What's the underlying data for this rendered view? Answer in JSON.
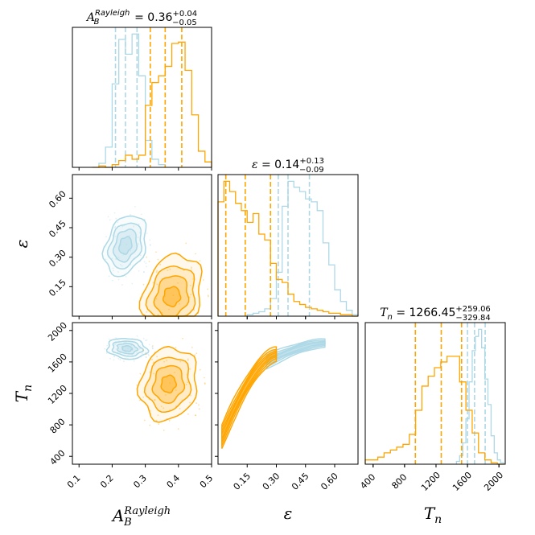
{
  "chart_data": {
    "type": "corner",
    "colors": {
      "orange": "#ffa500",
      "blue": "#add8e6"
    },
    "diag": [
      {
        "param": "A_B^Rayleigh",
        "title": {
          "prefix": "A",
          "sub": "B",
          "sup": "Rayleigh",
          "eq": " = 0.36",
          "plus": "+0.04",
          "minus": "−0.05"
        },
        "xlim": [
          0.08,
          0.5
        ],
        "orange": {
          "bins": [
            0.14,
            0.16,
            0.18,
            0.2,
            0.22,
            0.24,
            0.26,
            0.28,
            0.3,
            0.32,
            0.34,
            0.36,
            0.38,
            0.4,
            0.42,
            0.44,
            0.46,
            0.48
          ],
          "counts": [
            0,
            1,
            0,
            2,
            5,
            9,
            6,
            9,
            46,
            63,
            68,
            75,
            92,
            93,
            72,
            39,
            12,
            4
          ],
          "quantiles": [
            0.315,
            0.36,
            0.41
          ]
        },
        "blue": {
          "bins": [
            0.16,
            0.18,
            0.2,
            0.22,
            0.24,
            0.26,
            0.28,
            0.3,
            0.32,
            0.34
          ],
          "counts": [
            3,
            15,
            62,
            95,
            84,
            99,
            68,
            20,
            6,
            2
          ],
          "quantiles": [
            0.21,
            0.24,
            0.275
          ]
        }
      },
      {
        "param": "epsilon",
        "title": {
          "prefix": "ε",
          "eq": " = 0.14",
          "plus": "+0.13",
          "minus": "−0.09"
        },
        "xlim": [
          0.0,
          0.72
        ],
        "orange": {
          "bins": [
            0.0,
            0.03,
            0.06,
            0.09,
            0.12,
            0.15,
            0.18,
            0.21,
            0.24,
            0.27,
            0.3,
            0.33,
            0.36,
            0.39,
            0.42,
            0.45,
            0.48,
            0.51,
            0.54,
            0.57,
            0.6,
            0.63,
            0.66,
            0.69
          ],
          "counts": [
            78,
            92,
            85,
            77,
            72,
            64,
            70,
            56,
            52,
            36,
            25,
            23,
            15,
            10,
            8,
            6,
            5,
            4,
            3,
            2,
            2,
            1,
            1,
            0
          ],
          "quantiles": [
            0.04,
            0.14,
            0.27
          ]
        },
        "blue": {
          "bins": [
            0.15,
            0.18,
            0.21,
            0.24,
            0.27,
            0.3,
            0.33,
            0.36,
            0.39,
            0.42,
            0.45,
            0.48,
            0.51,
            0.54,
            0.57,
            0.6,
            0.63,
            0.66,
            0.69
          ],
          "counts": [
            1,
            2,
            3,
            5,
            12,
            30,
            75,
            92,
            88,
            85,
            80,
            78,
            72,
            50,
            35,
            18,
            10,
            4,
            1
          ],
          "quantiles": [
            0.31,
            0.36,
            0.47
          ]
        }
      },
      {
        "param": "T_n",
        "title": {
          "prefix": "T",
          "sub": "n",
          "eq": " = 1266.45",
          "plus": "+259.06",
          "minus": "−329.84"
        },
        "xlim": [
          300,
          2080
        ],
        "orange": {
          "bins": [
            300,
            380,
            460,
            540,
            620,
            700,
            780,
            860,
            940,
            1020,
            1100,
            1180,
            1260,
            1340,
            1420,
            1500,
            1580,
            1660,
            1740,
            1820,
            1900,
            1980
          ],
          "counts": [
            3,
            3,
            5,
            8,
            10,
            12,
            14,
            21,
            38,
            55,
            62,
            68,
            72,
            76,
            76,
            58,
            38,
            22,
            8,
            3,
            1,
            0
          ],
          "quantiles": [
            937,
            1266,
            1525
          ]
        },
        "blue": {
          "bins": [
            1460,
            1500,
            1540,
            1580,
            1620,
            1660,
            1700,
            1740,
            1780,
            1820,
            1860,
            1900,
            1940,
            1980,
            2020
          ],
          "counts": [
            2,
            6,
            15,
            32,
            58,
            80,
            90,
            95,
            82,
            60,
            42,
            20,
            8,
            3,
            1
          ],
          "quantiles": [
            1600,
            1690,
            1825
          ]
        }
      }
    ],
    "axes": {
      "A": {
        "label_base": "A",
        "label_sub": "B",
        "label_sup": "Rayleigh",
        "ticks": [
          "0.1",
          "0.2",
          "0.3",
          "0.4",
          "0.5"
        ],
        "tick_values": [
          0.1,
          0.2,
          0.3,
          0.4,
          0.5
        ]
      },
      "E": {
        "label": "ε",
        "ticks": [
          "0.15",
          "0.30",
          "0.45",
          "0.60"
        ],
        "tick_values": [
          0.15,
          0.3,
          0.45,
          0.6
        ]
      },
      "T": {
        "label_base": "T",
        "label_sub": "n",
        "ticks": [
          "400",
          "800",
          "1200",
          "1600",
          "2000"
        ],
        "tick_values": [
          400,
          800,
          1200,
          1600,
          2000
        ]
      }
    },
    "contours": {
      "A_E": {
        "blue": {
          "center": [
            0.24,
            0.36
          ],
          "radii": [
            [
              0.058,
              0.16
            ],
            [
              0.046,
              0.12
            ],
            [
              0.032,
              0.085
            ],
            [
              0.018,
              0.045
            ]
          ],
          "rot": -0.35
        },
        "orange": {
          "center": [
            0.38,
            0.1
          ],
          "radii": [
            [
              0.085,
              0.22
            ],
            [
              0.068,
              0.16
            ],
            [
              0.048,
              0.11
            ],
            [
              0.025,
              0.05
            ]
          ],
          "rot": -0.3
        }
      },
      "A_T": {
        "blue": {
          "center": [
            0.245,
            1770
          ],
          "radii": [
            [
              0.06,
              130
            ],
            [
              0.045,
              95
            ],
            [
              0.03,
              65
            ],
            [
              0.015,
              35
            ]
          ],
          "rot": -0.1
        },
        "orange": {
          "center": [
            0.37,
            1320
          ],
          "radii": [
            [
              0.085,
              470
            ],
            [
              0.065,
              350
            ],
            [
              0.045,
              240
            ],
            [
              0.022,
              110
            ]
          ],
          "rot": -0.25
        }
      },
      "E_T": {
        "blue": {
          "from": [
            0.25,
            1600
          ],
          "to": [
            0.55,
            1840
          ],
          "width": [
            0.035,
            0.02
          ]
        },
        "orange": {
          "from": [
            0.02,
            650
          ],
          "to": [
            0.3,
            1700
          ],
          "width": [
            0.06,
            0.035
          ]
        }
      }
    }
  }
}
